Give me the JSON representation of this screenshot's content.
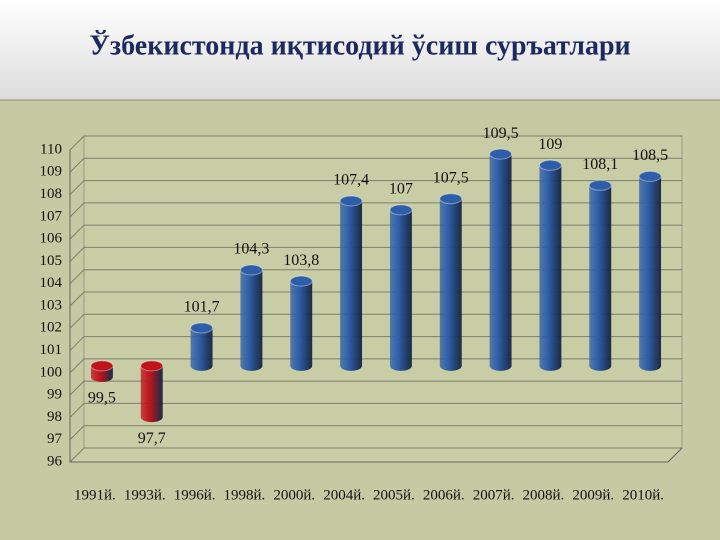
{
  "chart_data": {
    "type": "bar",
    "title": "Ўзбекистонда иқтисодий ўсиш суръатлари",
    "categories": [
      "1991й.",
      "1993й.",
      "1996й.",
      "1998й.",
      "2000й.",
      "2004й.",
      "2005й.",
      "2006й.",
      "2007й.",
      "2008й.",
      "2009й.",
      "2010й."
    ],
    "values": [
      99.5,
      97.7,
      101.7,
      104.3,
      103.8,
      107.4,
      107,
      107.5,
      109.5,
      109,
      108.1,
      108.5
    ],
    "value_labels": [
      "99,5",
      "97,7",
      "101,7",
      "104,3",
      "103,8",
      "107,4",
      "107",
      "107,5",
      "109,5",
      "109",
      "108,1",
      "108,5"
    ],
    "colors": [
      "#c0141c",
      "#c0141c",
      "#2e5ea8",
      "#2e5ea8",
      "#2e5ea8",
      "#2e5ea8",
      "#2e5ea8",
      "#2e5ea8",
      "#2e5ea8",
      "#2e5ea8",
      "#2e5ea8",
      "#2e5ea8"
    ],
    "ylim": [
      96,
      110
    ],
    "yticks": [
      96,
      97,
      98,
      99,
      100,
      101,
      102,
      103,
      104,
      105,
      106,
      107,
      108,
      109,
      110
    ],
    "grid": true
  }
}
